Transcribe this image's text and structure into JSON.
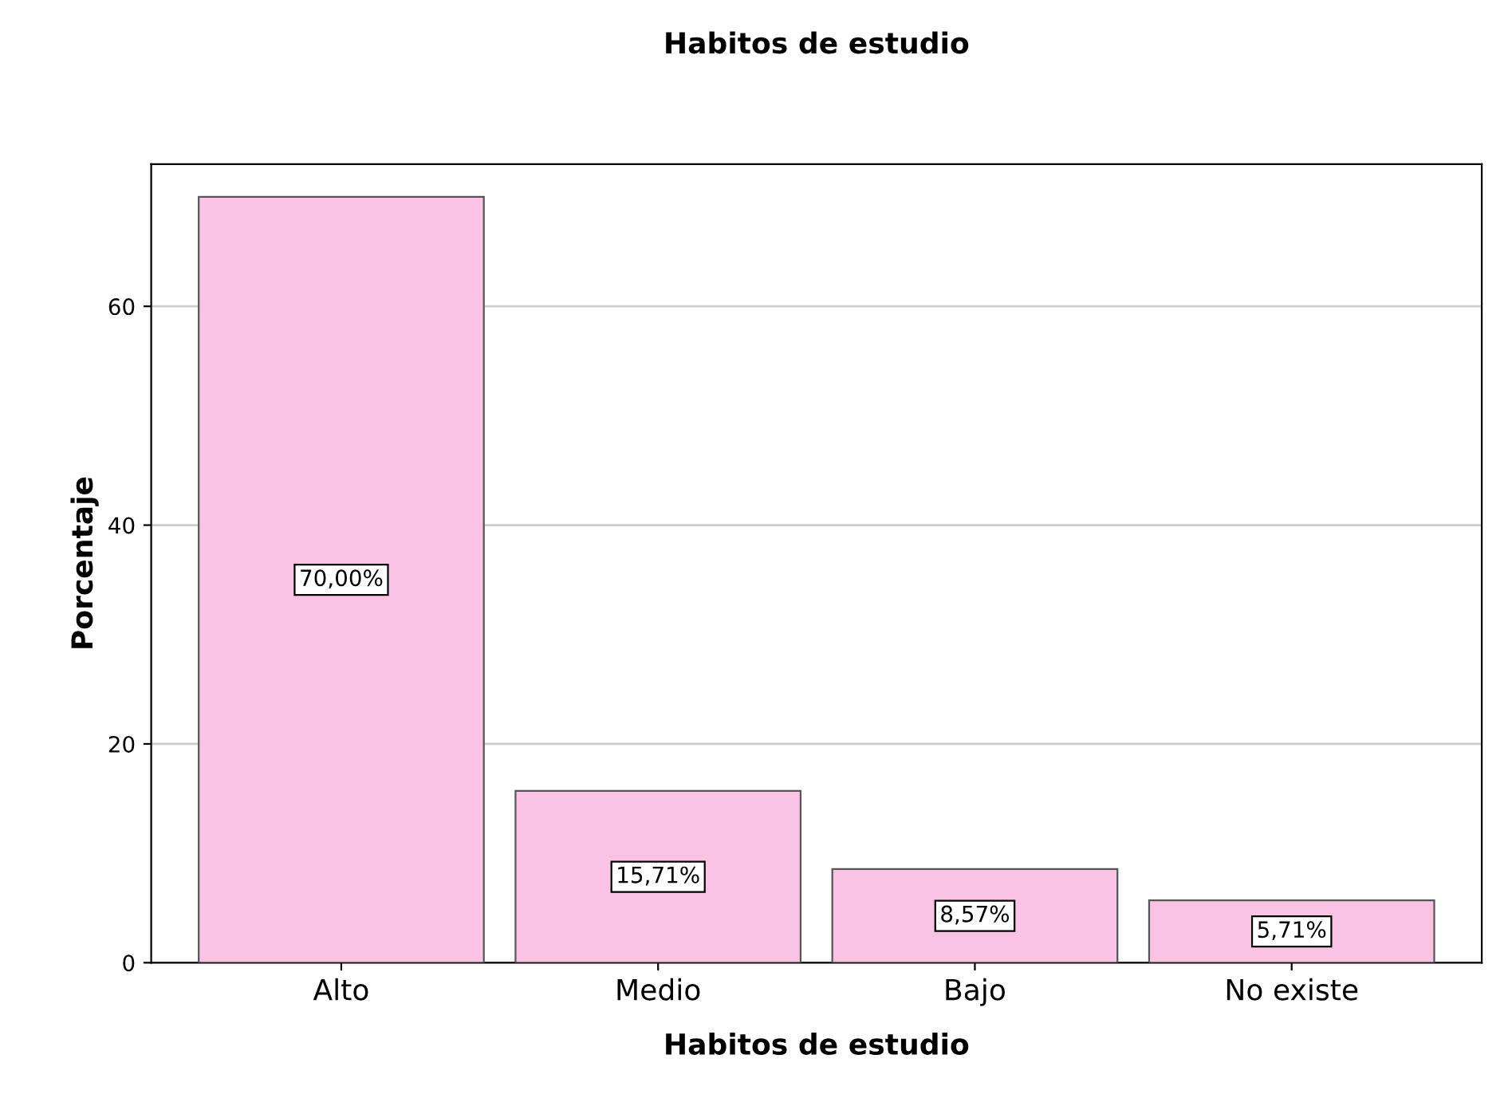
{
  "chart_data": {
    "type": "bar",
    "title": "Habitos de estudio",
    "xlabel": "Habitos de estudio",
    "ylabel": "Porcentaje",
    "categories": [
      "Alto",
      "Medio",
      "Bajo",
      "No existe"
    ],
    "values": [
      70.0,
      15.71,
      8.57,
      5.71
    ],
    "value_labels": [
      "70,00%",
      "15,71%",
      "8,57%",
      "5,71%"
    ],
    "color": "#fbc3e3",
    "ylim": [
      0,
      73
    ],
    "yticks": [
      0,
      20,
      40,
      60
    ],
    "grid": "y"
  }
}
